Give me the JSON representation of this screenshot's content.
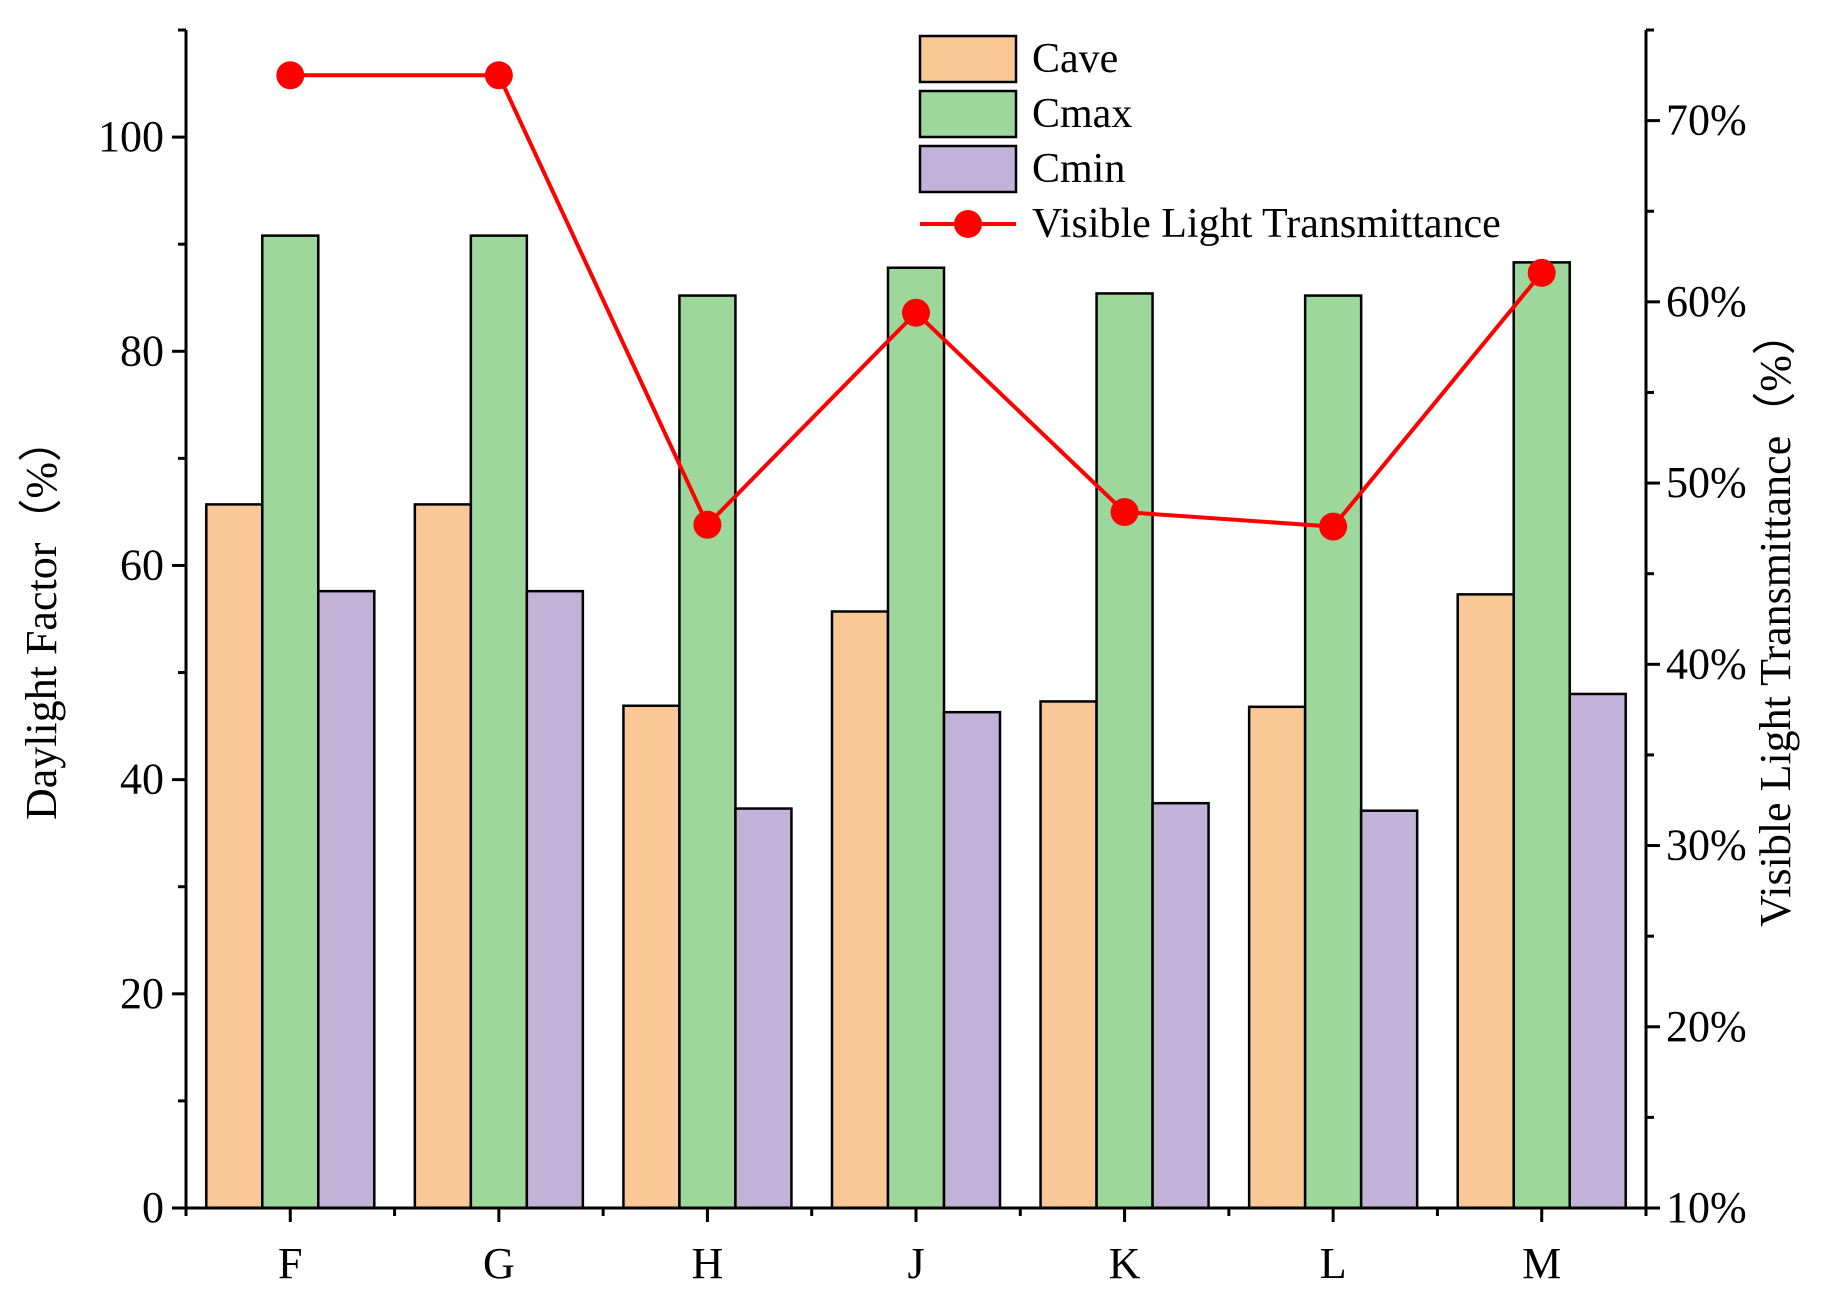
{
  "chart_data": {
    "type": "bar",
    "categories": [
      "F",
      "G",
      "H",
      "J",
      "K",
      "L",
      "M"
    ],
    "series": [
      {
        "name": "Cave",
        "color": "#F9C896",
        "values": [
          65.7,
          65.7,
          46.9,
          55.7,
          47.3,
          46.8,
          57.3
        ]
      },
      {
        "name": "Cmax",
        "color": "#9DD79B",
        "values": [
          90.8,
          90.8,
          85.2,
          87.8,
          85.4,
          85.2,
          88.3
        ]
      },
      {
        "name": "Cmin",
        "color": "#C2B2D8",
        "values": [
          57.6,
          57.6,
          37.3,
          46.3,
          37.8,
          37.1,
          48.0
        ]
      }
    ],
    "line_series": {
      "name": "Visible Light Transmittance",
      "color": "#FF0000",
      "axis": "right",
      "values": [
        72.5,
        72.5,
        47.7,
        59.4,
        48.4,
        47.6,
        61.6
      ]
    },
    "xlabel": "",
    "ylabel": "Daylight Factor（%）",
    "y2label": "Visible Light Transmittance（%）",
    "ylim": [
      0,
      110
    ],
    "y2lim": [
      10,
      75
    ],
    "yticks": [
      0,
      20,
      40,
      60,
      80,
      100
    ],
    "y2ticks": [
      10,
      20,
      30,
      40,
      50,
      60,
      70
    ],
    "y2tick_labels": [
      "10%",
      "20%",
      "30%",
      "40%",
      "50%",
      "60%",
      "70%"
    ],
    "legend_position": "top-center",
    "grid": false
  }
}
